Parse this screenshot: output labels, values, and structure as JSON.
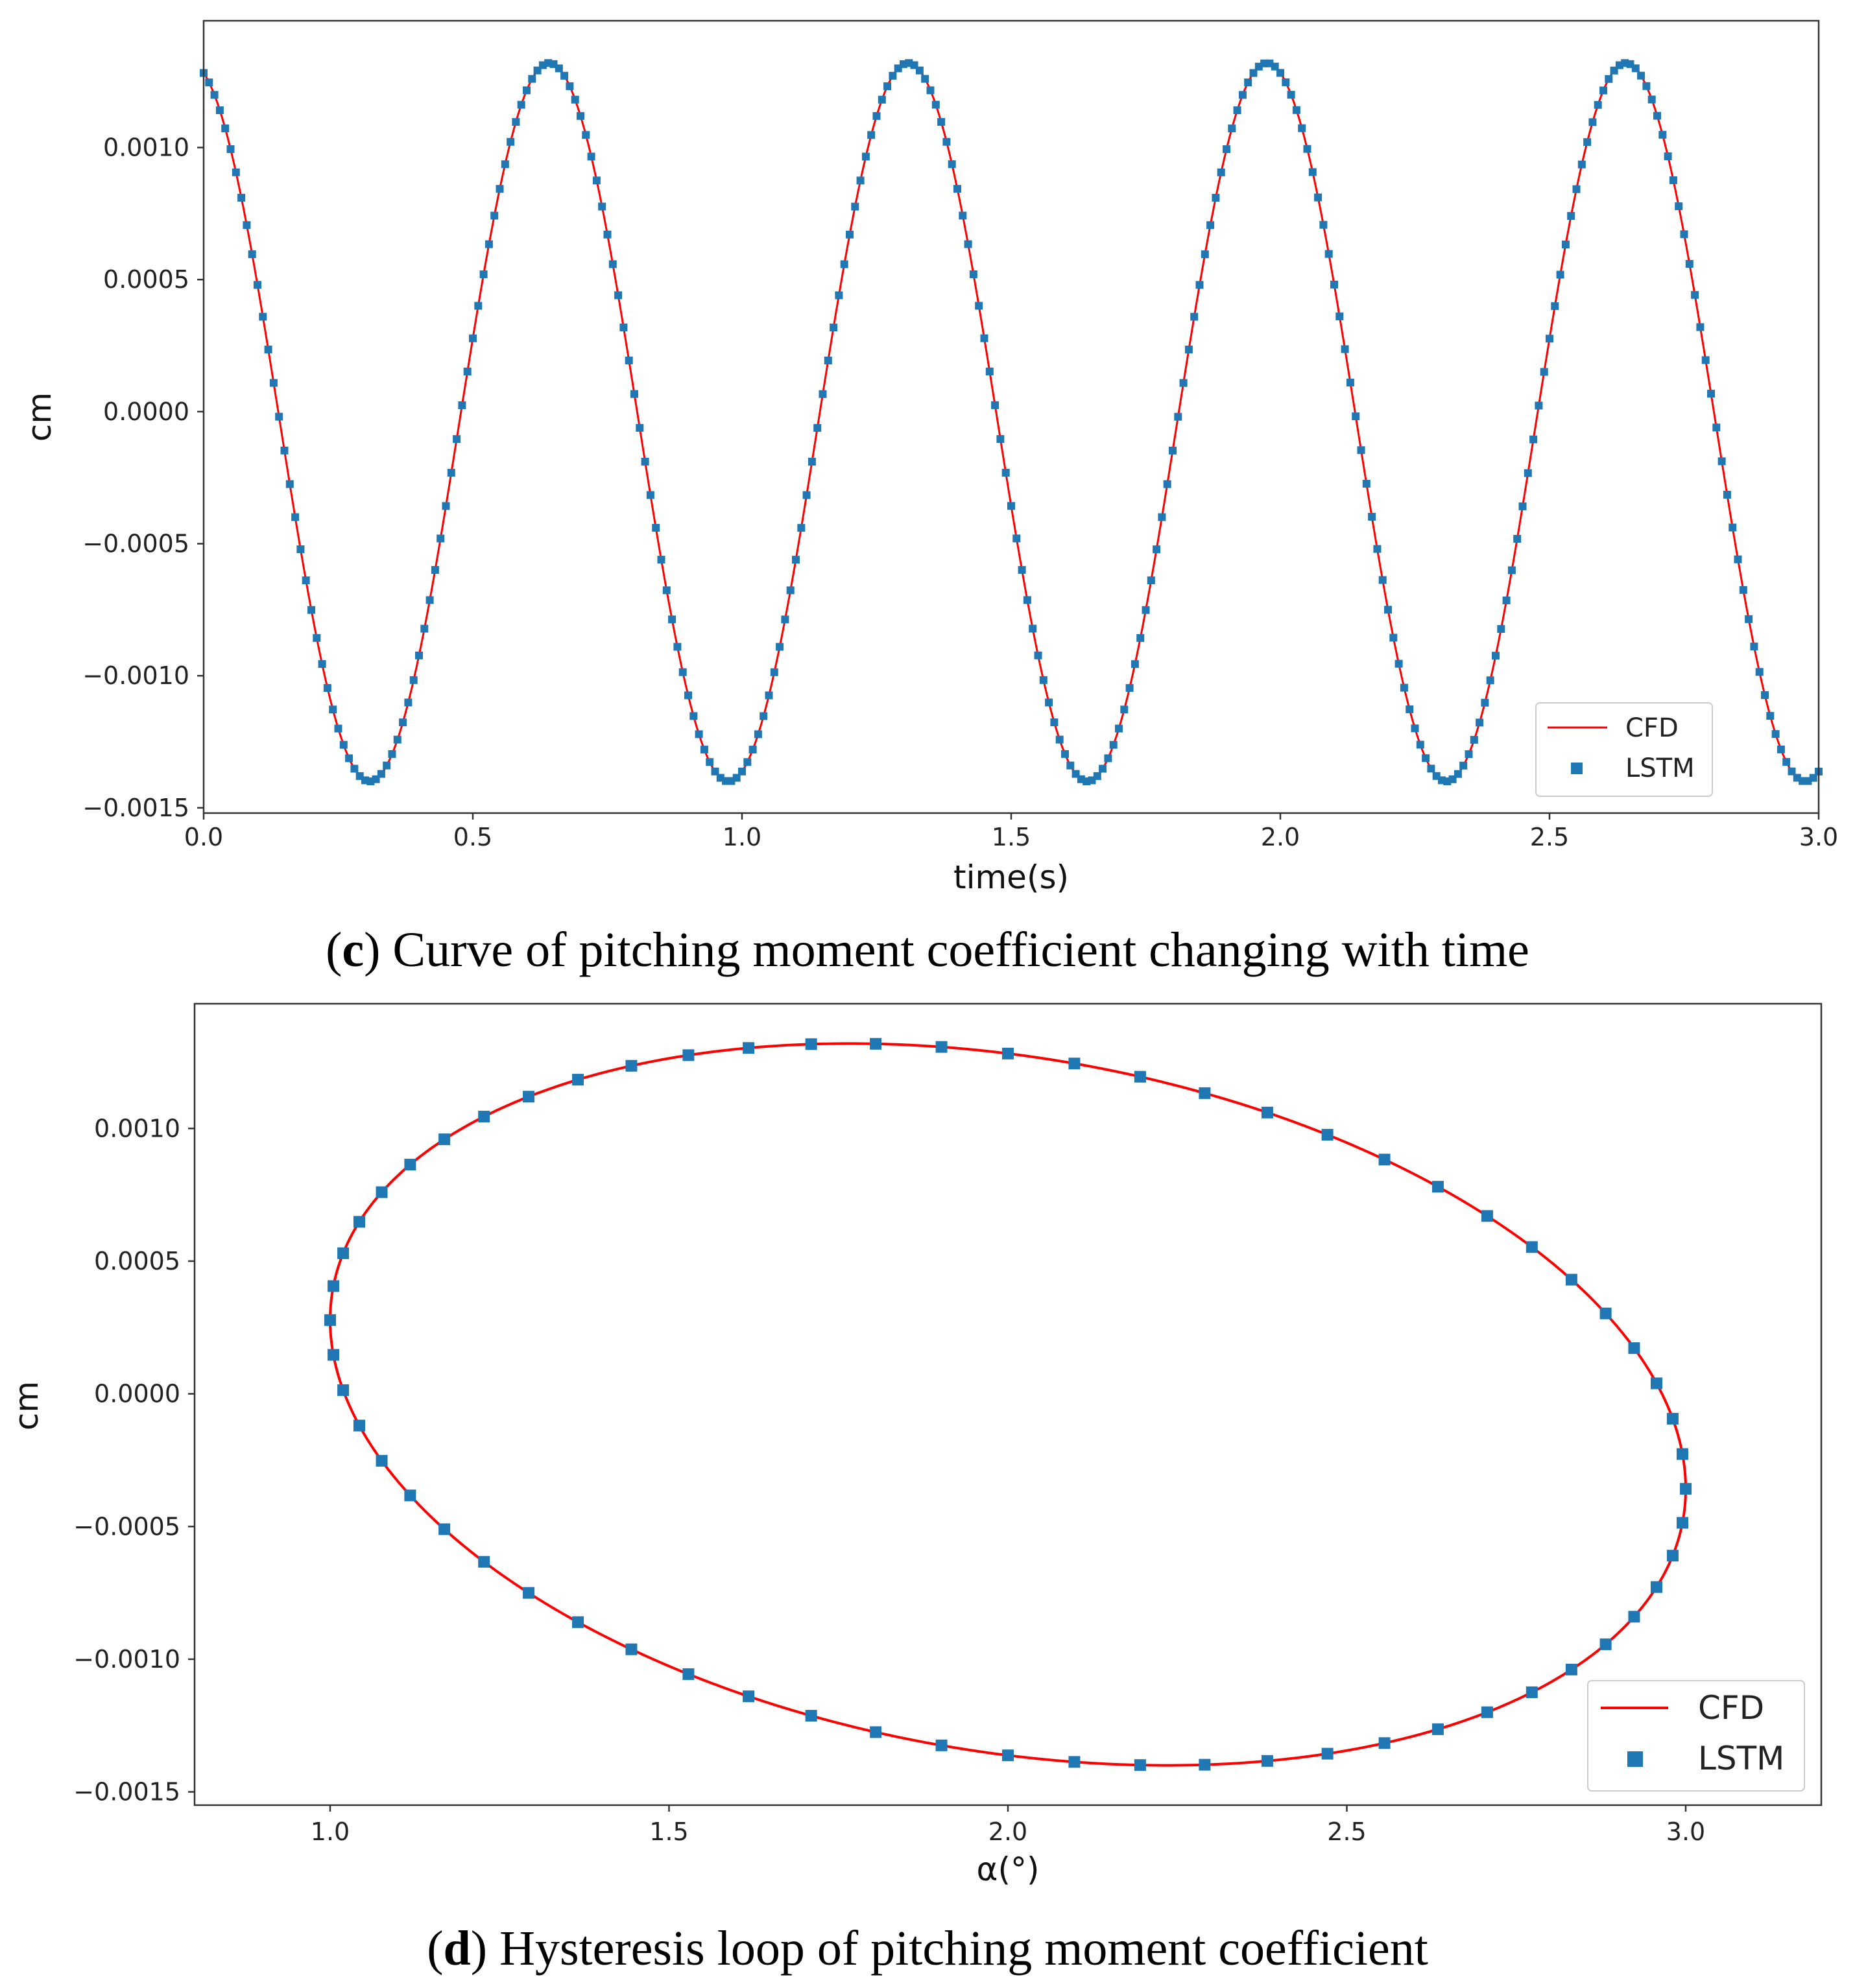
{
  "colors": {
    "cfd": "#ff0000",
    "lstm": "#1f77b4"
  },
  "charts": [
    {
      "id": "c",
      "caption": {
        "label": "c",
        "text": " Curve of pitching moment coefficient changing with time"
      },
      "chart_data": {
        "type": "line",
        "xlabel": "time(s)",
        "ylabel": "cm",
        "xlim": [
          0.0,
          3.0
        ],
        "ylim": [
          -0.00152,
          0.00148
        ],
        "xticks": [
          0.0,
          0.5,
          1.0,
          1.5,
          2.0,
          2.5,
          3.0
        ],
        "xtick_labels": [
          "0.0",
          "0.5",
          "1.0",
          "1.5",
          "2.0",
          "2.5",
          "3.0"
        ],
        "yticks": [
          -0.0015,
          -0.001,
          -0.0005,
          0.0,
          0.0005,
          0.001
        ],
        "ytick_labels": [
          "−0.0015",
          "−0.0010",
          "−0.0005",
          "0.0000",
          "0.0005",
          "0.0010"
        ],
        "legend_position": "lower-right",
        "series": [
          {
            "name": "CFD",
            "style": "line",
            "model": {
              "offset": -4e-05,
              "amplitude": 0.00136,
              "period_s": 0.6667,
              "phase_shift": 0.236
            },
            "t_range": [
              0.0,
              3.0
            ]
          },
          {
            "name": "LSTM",
            "style": "square-markers",
            "model": {
              "offset": -4e-05,
              "amplitude": 0.00136,
              "period_s": 0.6667,
              "phase_shift": 0.236
            },
            "t_range": [
              0.0,
              3.0
            ],
            "sample_step_s": 0.01
          }
        ]
      }
    },
    {
      "id": "d",
      "caption": {
        "label": "d",
        "text": " Hysteresis loop of pitching moment coefficient"
      },
      "chart_data": {
        "type": "line",
        "xlabel": "α(°)",
        "ylabel": "cm",
        "xlim": [
          0.8,
          3.2
        ],
        "ylim": [
          -0.00155,
          0.00147
        ],
        "xticks": [
          1.0,
          1.5,
          2.0,
          2.5,
          3.0
        ],
        "xtick_labels": [
          "1.0",
          "1.5",
          "2.0",
          "2.5",
          "3.0"
        ],
        "yticks": [
          -0.0015,
          -0.001,
          -0.0005,
          0.0,
          0.0005,
          0.001
        ],
        "ytick_labels": [
          "−0.0015",
          "−0.0010",
          "−0.0005",
          "0.0000",
          "0.0005",
          "0.0010"
        ],
        "legend_position": "lower-right",
        "series": [
          {
            "name": "CFD",
            "style": "line",
            "model": {
              "alpha_center": 2.0,
              "alpha_amplitude": 1.0,
              "cm_offset": -4e-05,
              "cm_amplitude": 0.00136,
              "phase_shift": 0.236
            }
          },
          {
            "name": "LSTM",
            "style": "square-markers",
            "model": {
              "alpha_center": 2.0,
              "alpha_amplitude": 1.0,
              "cm_offset": -4e-05,
              "cm_amplitude": 0.00136,
              "phase_shift": 0.236
            },
            "marker_count": 64
          }
        ]
      }
    }
  ]
}
